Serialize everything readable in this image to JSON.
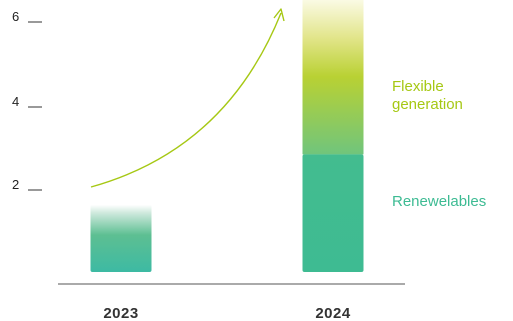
{
  "chart_data": {
    "type": "bar",
    "stacked": true,
    "categories": [
      "2023",
      "2024"
    ],
    "series": [
      {
        "name": "Renewelables",
        "values": [
          1.6,
          2.8
        ],
        "color": "#3fbb93"
      },
      {
        "name": "Flexible generation",
        "values": [
          0,
          3.7
        ],
        "color": "#b6d23a"
      }
    ],
    "y_ticks": [
      2,
      4,
      6
    ],
    "ylim": [
      0,
      6.6
    ],
    "annotation": "growth-arrow",
    "legend_placement": "right",
    "grid": false
  },
  "legend": {
    "flexible_line1": "Flexible",
    "flexible_line2": "generation",
    "renewables": "Renewelables"
  }
}
